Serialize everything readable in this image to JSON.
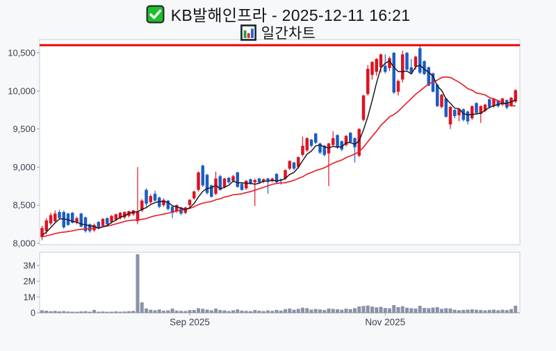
{
  "header": {
    "title": "KB발해인프라 - 2025-12-11 16:21",
    "subtitle": "일간차트",
    "checkbox_icon": "green-checked-checkbox",
    "subtitle_icon": "mini-bar-chart"
  },
  "colors": {
    "page_bg": "#f7f8f9",
    "panel_bg": "#ffffff",
    "panel_border": "#c9cdd2",
    "up_candle": "#dc1422",
    "down_candle": "#1d5dc4",
    "ma_short": "#1a1a1a",
    "ma_long": "#e8232e",
    "limit_line": "#ee0000",
    "volume_bar": "#8b93a9",
    "axis_label": "#39404e",
    "axis_line": "#9aa0a8",
    "checkbox_green": "#1dbf2d",
    "icon_bar_green": "#21a637",
    "icon_bar_red": "#e03131",
    "icon_bar_blue": "#2368d9"
  },
  "chart_data": {
    "type": "candlestick",
    "title": "KB발해인프라 - 2025-12-11 16:21",
    "subtitle": "일간차트",
    "price_axis": {
      "tick_values": [
        10500,
        10000,
        9500,
        9000,
        8500,
        8000
      ],
      "tick_labels": [
        "10,500",
        "10,000",
        "9,500",
        "9,000",
        "8,500",
        "8,000"
      ],
      "ylim": [
        7980,
        10675
      ],
      "grid": false
    },
    "volume_axis": {
      "tick_values_k": [
        0,
        1000,
        2000,
        3000
      ],
      "tick_labels": [
        "0",
        "1M",
        "2M",
        "3M"
      ],
      "ylim_k": [
        0,
        3830
      ],
      "unit": "shares, values stored in thousands"
    },
    "x_ticks": [
      {
        "label": "Sep 2025",
        "index": 34
      },
      {
        "label": "Nov 2025",
        "index": 79
      }
    ],
    "limit_line": {
      "value": 10600
    },
    "moving_averages": [
      {
        "name": "MA5",
        "window": 5,
        "color_key": "ma_short"
      },
      {
        "name": "MA20",
        "window": 20,
        "color_key": "ma_long"
      }
    ],
    "candles_format": [
      "open",
      "high",
      "low",
      "close",
      "volume_k"
    ],
    "candles": [
      [
        8080,
        8230,
        8040,
        8200,
        150
      ],
      [
        8160,
        8330,
        8120,
        8300,
        120
      ],
      [
        8260,
        8400,
        8230,
        8370,
        90
      ],
      [
        8290,
        8430,
        8270,
        8390,
        110
      ],
      [
        8410,
        8440,
        8310,
        8330,
        80
      ],
      [
        8410,
        8430,
        8190,
        8210,
        100
      ],
      [
        8390,
        8400,
        8230,
        8240,
        70
      ],
      [
        8400,
        8410,
        8260,
        8270,
        60
      ],
      [
        8280,
        8350,
        8250,
        8330,
        50
      ],
      [
        8390,
        8400,
        8210,
        8220,
        80
      ],
      [
        8340,
        8350,
        8140,
        8160,
        90
      ],
      [
        8250,
        8260,
        8140,
        8160,
        60
      ],
      [
        8170,
        8260,
        8150,
        8240,
        170
      ],
      [
        8280,
        8290,
        8180,
        8200,
        60
      ],
      [
        8230,
        8330,
        8210,
        8320,
        70
      ],
      [
        8330,
        8340,
        8240,
        8250,
        50
      ],
      [
        8280,
        8370,
        8260,
        8360,
        60
      ],
      [
        8310,
        8390,
        8290,
        8380,
        80
      ],
      [
        8330,
        8410,
        8310,
        8400,
        60
      ],
      [
        8340,
        8420,
        8320,
        8410,
        70
      ],
      [
        8360,
        8430,
        8340,
        8420,
        90
      ],
      [
        8380,
        8440,
        8360,
        8430,
        110
      ],
      [
        8290,
        9000,
        8250,
        8410,
        3700
      ],
      [
        8430,
        8580,
        8410,
        8560,
        650
      ],
      [
        8700,
        8720,
        8480,
        8520,
        260
      ],
      [
        8540,
        8640,
        8520,
        8620,
        180
      ],
      [
        8650,
        8690,
        8550,
        8560,
        150
      ],
      [
        8600,
        8610,
        8460,
        8480,
        200
      ],
      [
        8500,
        8590,
        8480,
        8570,
        120
      ],
      [
        8560,
        8570,
        8430,
        8450,
        140
      ],
      [
        8480,
        8490,
        8330,
        8400,
        250
      ],
      [
        8420,
        8510,
        8400,
        8500,
        130
      ],
      [
        8470,
        8480,
        8370,
        8390,
        110
      ],
      [
        8400,
        8480,
        8380,
        8470,
        100
      ],
      [
        8500,
        8580,
        8460,
        8570,
        160
      ],
      [
        8590,
        8690,
        8570,
        8680,
        170
      ],
      [
        8700,
        8940,
        8680,
        8930,
        280
      ],
      [
        9020,
        9030,
        8740,
        8760,
        240
      ],
      [
        8900,
        8910,
        8640,
        8660,
        190
      ],
      [
        8760,
        8770,
        8600,
        8610,
        150
      ],
      [
        8650,
        8940,
        8630,
        8850,
        260
      ],
      [
        8880,
        8900,
        8690,
        8700,
        170
      ],
      [
        8740,
        8860,
        8720,
        8850,
        140
      ],
      [
        8860,
        8870,
        8780,
        8800,
        100
      ],
      [
        8820,
        8900,
        8800,
        8880,
        150
      ],
      [
        8930,
        8940,
        8730,
        8740,
        200
      ],
      [
        8780,
        8800,
        8690,
        8700,
        130
      ],
      [
        8720,
        8830,
        8700,
        8820,
        110
      ],
      [
        8840,
        8850,
        8770,
        8790,
        90
      ],
      [
        8800,
        8850,
        8490,
        8830,
        160
      ],
      [
        8850,
        8860,
        8780,
        8800,
        120
      ],
      [
        8810,
        8850,
        8790,
        8840,
        100
      ],
      [
        8850,
        8860,
        8650,
        8810,
        140
      ],
      [
        8820,
        8860,
        8800,
        8850,
        110
      ],
      [
        8910,
        8920,
        8780,
        8800,
        170
      ],
      [
        8840,
        8850,
        8770,
        8830,
        130
      ],
      [
        8850,
        8970,
        8830,
        8960,
        220
      ],
      [
        8980,
        9090,
        8960,
        9080,
        260
      ],
      [
        9060,
        9070,
        8960,
        8980,
        180
      ],
      [
        9000,
        9140,
        8980,
        9130,
        240
      ],
      [
        9160,
        9400,
        9140,
        9280,
        310
      ],
      [
        9220,
        9390,
        9200,
        9380,
        280
      ],
      [
        9360,
        9370,
        9260,
        9280,
        190
      ],
      [
        9440,
        9450,
        9300,
        9320,
        230
      ],
      [
        9310,
        9320,
        9170,
        9190,
        200
      ],
      [
        9280,
        9290,
        9140,
        9160,
        170
      ],
      [
        9180,
        9320,
        8750,
        9310,
        260
      ],
      [
        9290,
        9470,
        9270,
        9380,
        240
      ],
      [
        9420,
        9430,
        9240,
        9260,
        210
      ],
      [
        9340,
        9350,
        9210,
        9230,
        180
      ],
      [
        9290,
        9420,
        9270,
        9410,
        250
      ],
      [
        9450,
        9460,
        9310,
        9330,
        220
      ],
      [
        9380,
        9390,
        9060,
        9260,
        280
      ],
      [
        9150,
        9510,
        9130,
        9500,
        390
      ],
      [
        9620,
        9950,
        9600,
        9940,
        420
      ],
      [
        9960,
        10340,
        9940,
        10290,
        450
      ],
      [
        10210,
        10390,
        10150,
        10380,
        380
      ],
      [
        10250,
        10430,
        10200,
        10420,
        330
      ],
      [
        10310,
        10490,
        10240,
        10480,
        360
      ],
      [
        10330,
        10480,
        10230,
        10250,
        290
      ],
      [
        10300,
        10450,
        10260,
        10430,
        270
      ],
      [
        10500,
        10510,
        9960,
        9980,
        470
      ],
      [
        9990,
        10150,
        9940,
        10130,
        350
      ],
      [
        10150,
        10530,
        10110,
        10480,
        400
      ],
      [
        10500,
        10510,
        10260,
        10280,
        310
      ],
      [
        10310,
        10420,
        10230,
        10240,
        280
      ],
      [
        10320,
        10460,
        10280,
        10450,
        260
      ],
      [
        10560,
        10590,
        10220,
        10240,
        430
      ],
      [
        10390,
        10400,
        10210,
        10220,
        300
      ],
      [
        10310,
        10320,
        10060,
        10070,
        280
      ],
      [
        10230,
        10240,
        9980,
        9990,
        320
      ],
      [
        10080,
        10090,
        9790,
        9800,
        350
      ],
      [
        9790,
        9960,
        9770,
        9950,
        240
      ],
      [
        9900,
        9910,
        9650,
        9660,
        280
      ],
      [
        9560,
        9800,
        9500,
        9790,
        260
      ],
      [
        9750,
        9760,
        9640,
        9670,
        180
      ],
      [
        9680,
        9770,
        9600,
        9760,
        150
      ],
      [
        9760,
        9770,
        9600,
        9620,
        170
      ],
      [
        9730,
        9740,
        9560,
        9600,
        190
      ],
      [
        9640,
        9810,
        9620,
        9800,
        210
      ],
      [
        9840,
        9850,
        9690,
        9710,
        180
      ],
      [
        9700,
        9810,
        9580,
        9800,
        160
      ],
      [
        9740,
        9830,
        9720,
        9820,
        140
      ],
      [
        9890,
        9900,
        9770,
        9790,
        170
      ],
      [
        9800,
        9910,
        9780,
        9900,
        190
      ],
      [
        9870,
        9880,
        9780,
        9800,
        150
      ],
      [
        9820,
        9910,
        9800,
        9900,
        180
      ],
      [
        9880,
        9890,
        9760,
        9780,
        160
      ],
      [
        9810,
        9920,
        9790,
        9910,
        220
      ],
      [
        9860,
        10020,
        9840,
        10010,
        440
      ]
    ]
  }
}
